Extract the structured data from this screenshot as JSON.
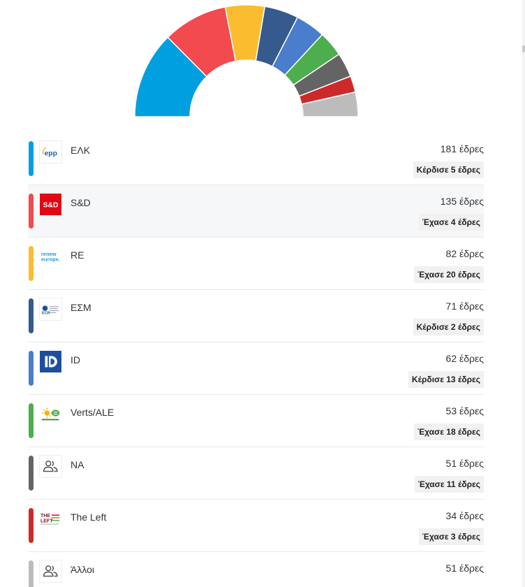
{
  "chart_data": {
    "type": "pie",
    "variant": "parliament-hemicycle",
    "unit": "έδρες",
    "categories": [
      "ΕΛΚ",
      "S&D",
      "RE",
      "ΕΣΜ",
      "ID",
      "Verts/ALE",
      "NA",
      "The Left",
      "Άλλοι"
    ],
    "values": [
      181,
      135,
      82,
      71,
      62,
      53,
      51,
      34,
      51
    ],
    "colors": [
      "#009fe0",
      "#f24a4f",
      "#fbbd2f",
      "#345a8e",
      "#4a7dcc",
      "#4cae4c",
      "#646464",
      "#cc2a2a",
      "#bcbcbc"
    ]
  },
  "parties": [
    {
      "name": "ΕΛΚ",
      "seats": "181 έδρες",
      "change": "Κέρδισε 5 έδρες",
      "color": "#009fe0",
      "logo": "epp-logo"
    },
    {
      "name": "S&D",
      "seats": "135 έδρες",
      "change": "Έχασε 4 έδρες",
      "color": "#f24a4f",
      "logo": "s-and-d-logo"
    },
    {
      "name": "RE",
      "seats": "82 έδρες",
      "change": "Έχασε 20 έδρες",
      "color": "#fbbd2f",
      "logo": "renew-europe-logo"
    },
    {
      "name": "ΕΣΜ",
      "seats": "71 έδρες",
      "change": "Κέρδισε 2 έδρες",
      "color": "#345a8e",
      "logo": "ecr-logo"
    },
    {
      "name": "ID",
      "seats": "62 έδρες",
      "change": "Κέρδισε 13 έδρες",
      "color": "#4a7dcc",
      "logo": "id-logo"
    },
    {
      "name": "Verts/ALE",
      "seats": "53 έδρες",
      "change": "Έχασε 18 έδρες",
      "color": "#4cae4c",
      "logo": "greens-efa-logo"
    },
    {
      "name": "NA",
      "seats": "51 έδρες",
      "change": "Έχασε 11 έδρες",
      "color": "#646464",
      "logo": "users-icon"
    },
    {
      "name": "The Left",
      "seats": "34 έδρες",
      "change": "Έχασε 3 έδρες",
      "color": "#cc2a2a",
      "logo": "the-left-logo"
    },
    {
      "name": "Άλλοι",
      "seats": "51 έδρες",
      "change": "",
      "color": "#bcbcbc",
      "logo": "users-icon"
    }
  ],
  "logo_text": {
    "epp": "epp",
    "sd": "S&D",
    "renew_line1": "renew",
    "renew_line2": "europe.",
    "ecr": "ECR",
    "the_left_line1": "THE",
    "the_left_line2": "LEFT"
  }
}
